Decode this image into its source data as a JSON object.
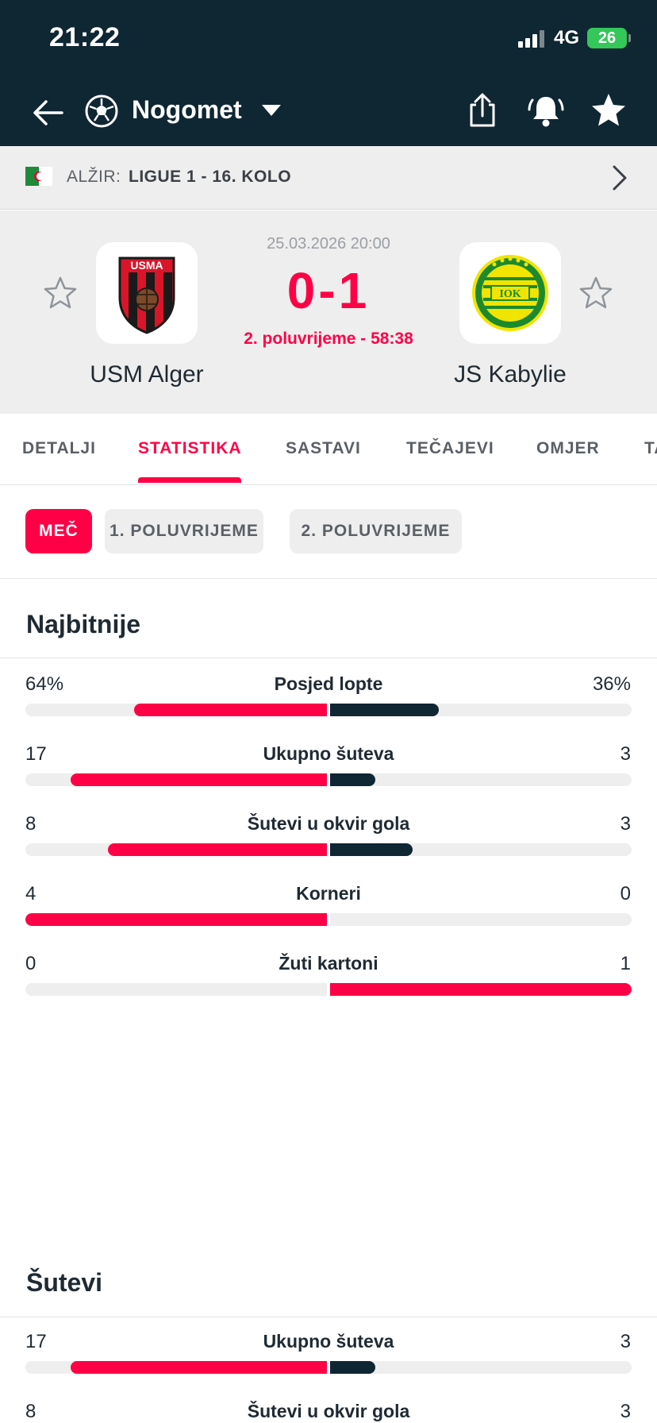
{
  "status_bar": {
    "time": "21:22",
    "network": "4G",
    "battery": "26"
  },
  "nav": {
    "sport": "Nogomet"
  },
  "league": {
    "country": "ALŽIR:",
    "name": "LIGUE 1 - 16. KOLO"
  },
  "match": {
    "datetime": "25.03.2026 20:00",
    "score": "0-1",
    "period": "2. poluvrijeme - 58:38",
    "home": {
      "name": "USM Alger",
      "logo_text": "USMA"
    },
    "away": {
      "name": "JS Kabylie",
      "logo_text": "IOK"
    }
  },
  "tabs": [
    {
      "label": "DETALJI"
    },
    {
      "label": "STATISTIKA"
    },
    {
      "label": "SASTAVI"
    },
    {
      "label": "TEČAJEVI"
    },
    {
      "label": "OMJER"
    },
    {
      "label": "TABLICA"
    }
  ],
  "period_filters": [
    {
      "label": "MEČ"
    },
    {
      "label": "1. POLUVRIJEME"
    },
    {
      "label": "2. POLUVRIJEME"
    }
  ],
  "sections": [
    {
      "title": "Najbitnije",
      "stats": [
        {
          "label": "Posjed lopte",
          "home": "64%",
          "away": "36%",
          "home_share": 0.64,
          "away_share": 0.36
        },
        {
          "label": "Ukupno šuteva",
          "home": "17",
          "away": "3",
          "home_share": 0.85,
          "away_share": 0.15
        },
        {
          "label": "Šutevi u okvir gola",
          "home": "8",
          "away": "3",
          "home_share": 0.727,
          "away_share": 0.273
        },
        {
          "label": "Korneri",
          "home": "4",
          "away": "0",
          "home_share": 1.0,
          "away_share": 0.0
        },
        {
          "label": "Žuti kartoni",
          "home": "0",
          "away": "1",
          "home_share": 0.0,
          "away_share": 1.0
        }
      ]
    },
    {
      "title": "Šutevi",
      "stats": [
        {
          "label": "Ukupno šuteva",
          "home": "17",
          "away": "3",
          "home_share": 0.85,
          "away_share": 0.15
        },
        {
          "label": "Šutevi u okvir gola",
          "home": "8",
          "away": "3",
          "home_share": 0.727,
          "away_share": 0.273
        }
      ]
    }
  ],
  "colors": {
    "accent": "#ff0046",
    "dark": "#0f2633",
    "track": "#eeeeee"
  }
}
